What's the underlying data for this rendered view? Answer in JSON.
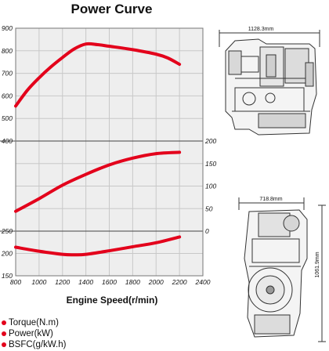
{
  "title": "Power Curve",
  "chart_data": {
    "type": "line",
    "title": "Power Curve",
    "xlabel": "Engine Speed(r/min)",
    "x_ticks": [
      800,
      1000,
      1200,
      1400,
      1600,
      1800,
      2000,
      2200,
      2400
    ],
    "xlim": [
      800,
      2400
    ],
    "grid": true,
    "legend": "bottom-left",
    "series": [
      {
        "name": "Torque(N.m)",
        "axis": "left-top",
        "ylim": [
          400,
          900
        ],
        "y_ticks": [
          400,
          500,
          600,
          700,
          800,
          900
        ],
        "x": [
          800,
          900,
          1000,
          1100,
          1200,
          1300,
          1400,
          1500,
          1600,
          1800,
          2000,
          2100,
          2200
        ],
        "y": [
          555,
          625,
          680,
          728,
          770,
          808,
          830,
          827,
          820,
          805,
          785,
          768,
          740
        ]
      },
      {
        "name": "Power(kW)",
        "axis": "right-middle",
        "ylim": [
          0,
          200
        ],
        "y_ticks": [
          0,
          50,
          100,
          150,
          200
        ],
        "x": [
          800,
          1000,
          1200,
          1400,
          1600,
          1800,
          2000,
          2200
        ],
        "y": [
          44,
          72,
          102,
          126,
          147,
          162,
          172,
          175
        ]
      },
      {
        "name": "BSFC(g/kW.h)",
        "axis": "left-bottom",
        "ylim": [
          150,
          250
        ],
        "y_ticks": [
          150,
          200,
          250
        ],
        "x": [
          800,
          1000,
          1200,
          1300,
          1400,
          1600,
          1800,
          2000,
          2200
        ],
        "y": [
          214,
          205,
          198,
          197,
          198,
          206,
          215,
          224,
          237
        ]
      }
    ],
    "colors": {
      "curve": "#e3001b",
      "plot_bg": "#eeeeee",
      "grid": "#c8c8c8"
    }
  },
  "diagrams": {
    "side_dim": "1128.3mm",
    "front_width_dim": "718.8mm",
    "front_height_dim": "1061.9mm"
  }
}
